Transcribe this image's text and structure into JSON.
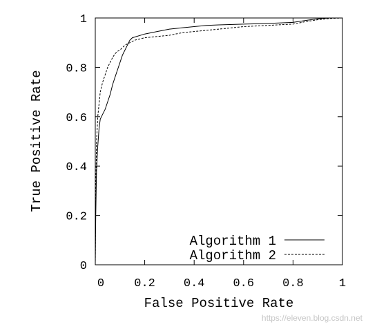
{
  "chart_data": {
    "type": "line",
    "title": "",
    "xlabel": "False Positive Rate",
    "ylabel": "True Positive Rate",
    "xlim": [
      0,
      1
    ],
    "ylim": [
      0,
      1
    ],
    "xticks": [
      0,
      0.2,
      0.4,
      0.6,
      0.8,
      1
    ],
    "yticks": [
      0,
      0.2,
      0.4,
      0.6,
      0.8,
      1
    ],
    "xtick_labels": [
      "0",
      "0.2",
      "0.4",
      "0.6",
      "0.8",
      "1"
    ],
    "ytick_labels": [
      "0",
      "0.2",
      "0.4",
      "0.6",
      "0.8",
      "1"
    ],
    "grid": false,
    "legend_position": "bottom-right",
    "series": [
      {
        "name": "Algorithm 1",
        "style": "solid",
        "x": [
          0,
          0.002,
          0.005,
          0.01,
          0.015,
          0.02,
          0.03,
          0.04,
          0.05,
          0.06,
          0.07,
          0.08,
          0.09,
          0.1,
          0.11,
          0.12,
          0.13,
          0.14,
          0.15,
          0.2,
          0.25,
          0.3,
          0.35,
          0.4,
          0.45,
          0.5,
          0.6,
          0.7,
          0.8,
          0.85,
          0.9,
          0.95,
          1
        ],
        "y": [
          0,
          0.2,
          0.38,
          0.48,
          0.55,
          0.59,
          0.61,
          0.63,
          0.66,
          0.69,
          0.73,
          0.76,
          0.79,
          0.82,
          0.85,
          0.87,
          0.89,
          0.91,
          0.92,
          0.935,
          0.945,
          0.955,
          0.96,
          0.965,
          0.97,
          0.972,
          0.975,
          0.978,
          0.982,
          0.99,
          0.997,
          1,
          1
        ]
      },
      {
        "name": "Algorithm 2",
        "style": "dashed",
        "x": [
          0,
          0.002,
          0.005,
          0.01,
          0.015,
          0.02,
          0.03,
          0.04,
          0.05,
          0.06,
          0.07,
          0.08,
          0.09,
          0.1,
          0.12,
          0.14,
          0.16,
          0.2,
          0.25,
          0.3,
          0.35,
          0.4,
          0.5,
          0.6,
          0.7,
          0.8,
          0.85,
          0.9,
          0.95,
          1
        ],
        "y": [
          0,
          0.3,
          0.5,
          0.6,
          0.65,
          0.7,
          0.74,
          0.77,
          0.8,
          0.82,
          0.84,
          0.855,
          0.865,
          0.87,
          0.89,
          0.9,
          0.91,
          0.92,
          0.925,
          0.93,
          0.94,
          0.945,
          0.955,
          0.965,
          0.97,
          0.975,
          0.985,
          0.993,
          0.998,
          1
        ]
      }
    ]
  },
  "watermark": "https://eleven.blog.csdn.net"
}
